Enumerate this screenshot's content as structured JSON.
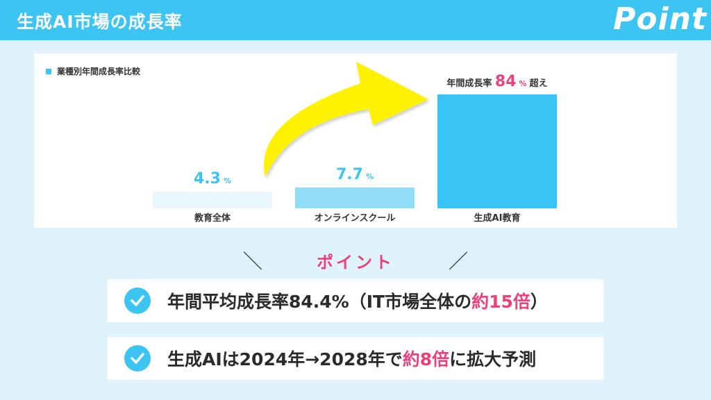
{
  "header": {
    "title": "生成AI市場の成長率",
    "badge": "Point"
  },
  "chart_data": {
    "type": "bar",
    "legend": "業種別年間成長率比較",
    "categories": [
      "教育全体",
      "オンラインスクール",
      "生成AI教育"
    ],
    "values": [
      4.3,
      7.7,
      84
    ],
    "unit": "%",
    "value_labels": [
      "4.3",
      "7.7",
      "84"
    ],
    "value_prefix": [
      "",
      "",
      "年間成長率"
    ],
    "value_suffix": [
      "",
      "",
      "超え"
    ],
    "bar_colors": [
      "#eaf7fd",
      "#8fddf7",
      "#38c4f4"
    ],
    "label_colors": [
      "#3cc4f2",
      "#3cc4f2",
      "#e8417c"
    ],
    "grid": false,
    "annotation": "yellow curved arrow from 教育全体 to 生成AI教育"
  },
  "points": {
    "heading": "ポイント",
    "items": [
      {
        "pre": "年間平均成長率84.4%（IT市場全体の",
        "hl": "約15倍",
        "post": "）"
      },
      {
        "pre": "生成AIは2024年→2028年で",
        "hl": "約8倍",
        "post": "に拡大予測"
      }
    ]
  },
  "colors": {
    "accent": "#3cc4f2",
    "highlight": "#e8417c",
    "arrow": "#fff200",
    "background": "#dff3fd"
  }
}
